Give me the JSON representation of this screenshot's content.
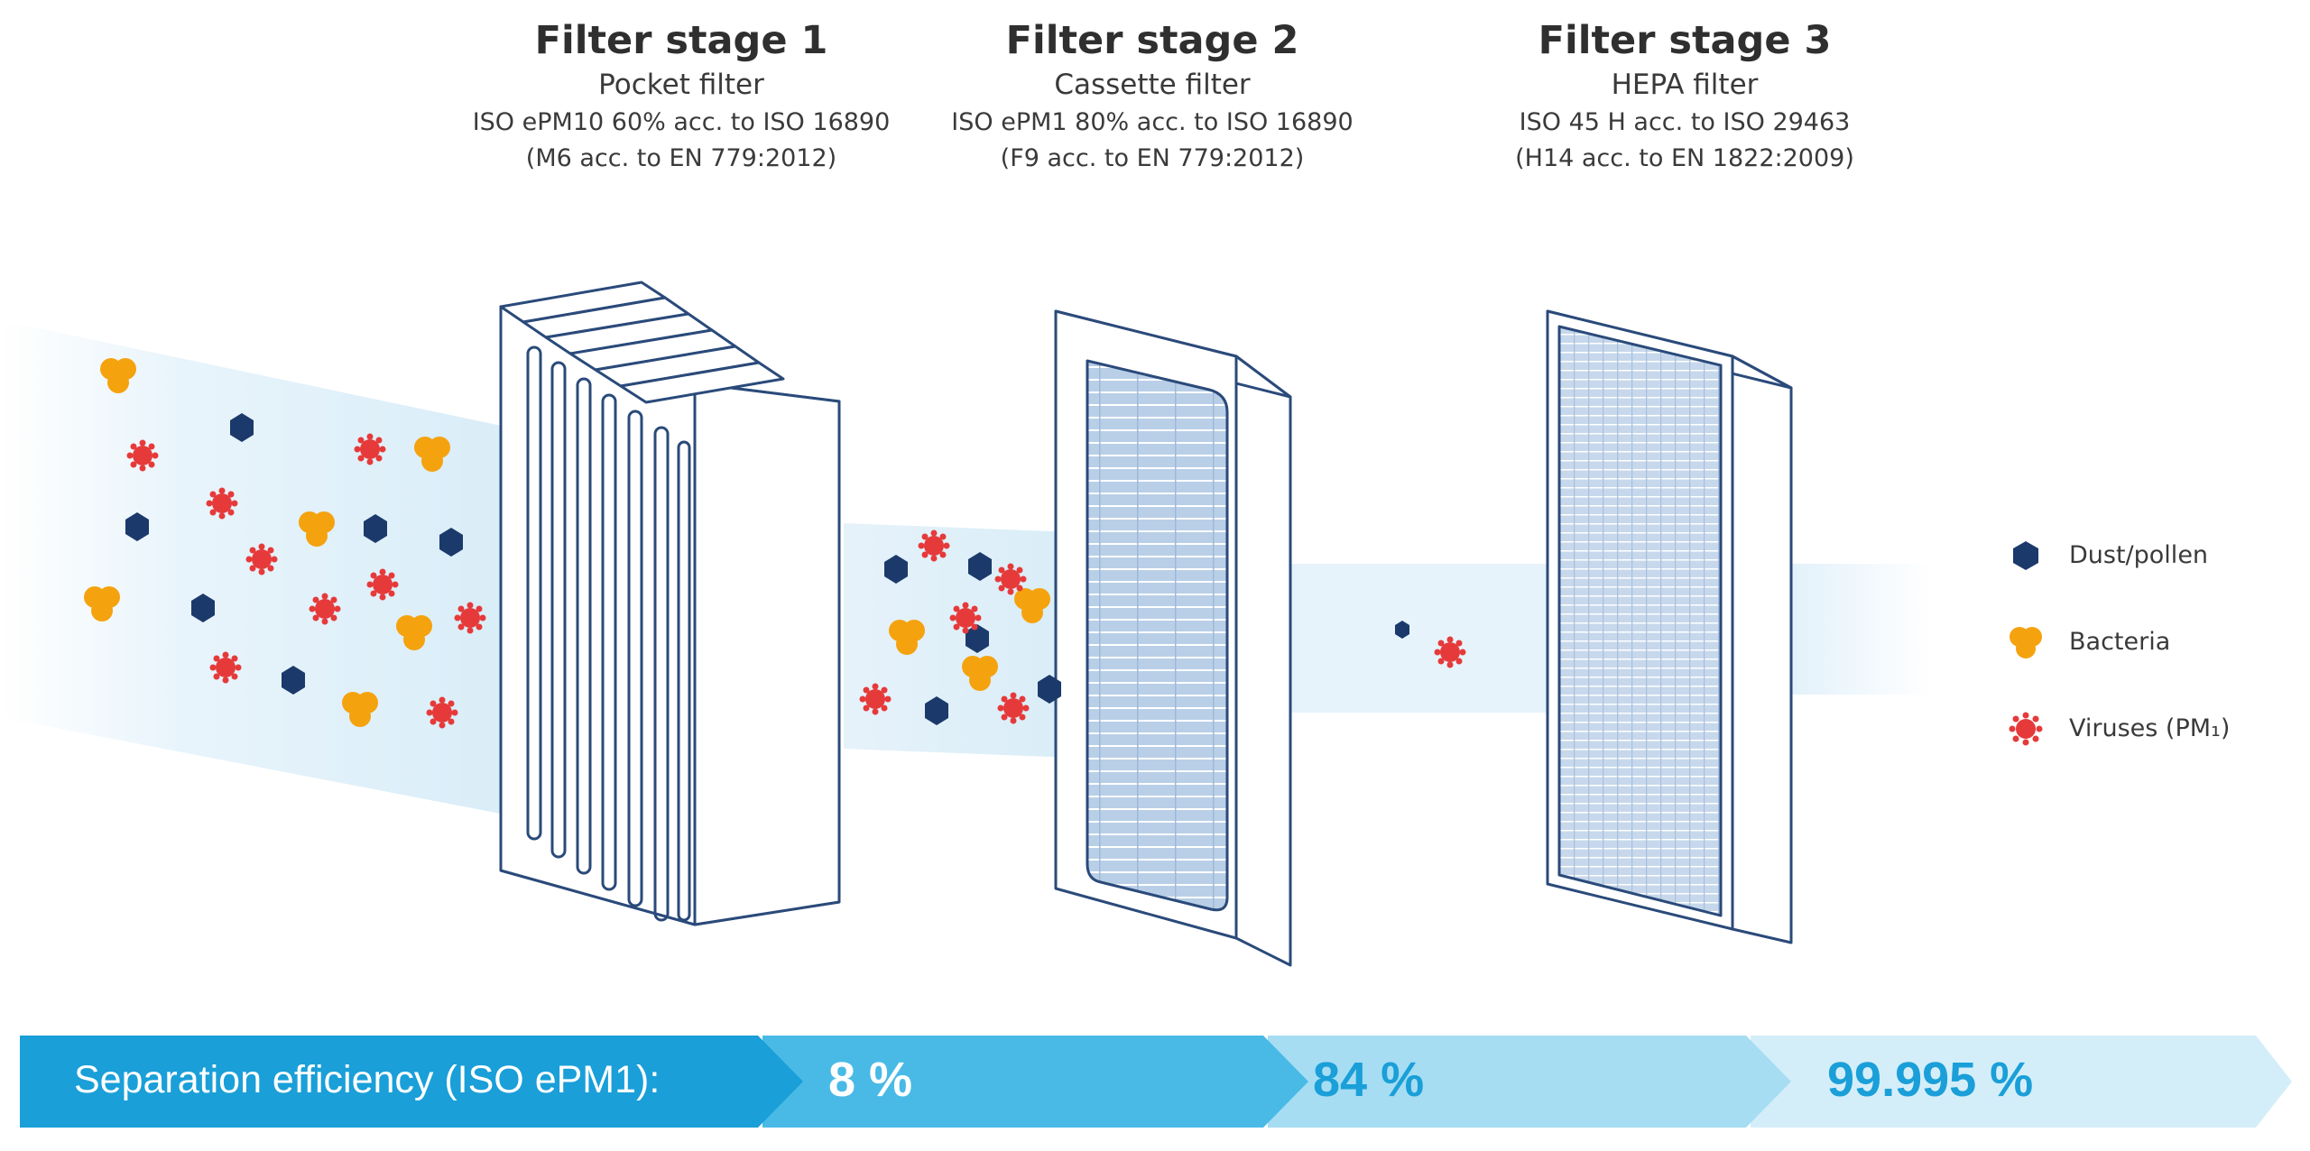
{
  "stages": [
    {
      "title": "Filter stage 1",
      "type": "Pocket filter",
      "rating": "ISO ePM10 60% acc. to ISO 16890",
      "equivalent": "(M6 acc. to EN 779:2012)"
    },
    {
      "title": "Filter stage 2",
      "type": "Cassette filter",
      "rating": "ISO ePM1 80% acc. to ISO 16890",
      "equivalent": "(F9 acc. to EN 779:2012)"
    },
    {
      "title": "Filter stage 3",
      "type": "HEPA filter",
      "rating": "ISO 45 H acc. to ISO 29463",
      "equivalent": "(H14 acc. to EN 1822:2009)"
    }
  ],
  "legend": [
    {
      "label": "Dust/pollen",
      "icon": "hexagon",
      "color": "#1b3a6b"
    },
    {
      "label": "Bacteria",
      "icon": "cluster",
      "color": "#f5a20f"
    },
    {
      "label": "Viruses (PM₁)",
      "icon": "spiky-circle",
      "color": "#e63a3a"
    }
  ],
  "efficiency": {
    "label": "Separation efficiency (ISO ePM1):",
    "values": [
      "8 %",
      "84 %",
      "99.995 %"
    ]
  },
  "colors": {
    "navy": "#1b3a6b",
    "orange": "#f5a20f",
    "red": "#e63a3a",
    "bar_dark": "#1a9fd8",
    "bar_mid": "#49b9e4",
    "bar_light": "#a3dcf3",
    "bar_lighter": "#d6f0fb",
    "filter_mesh": "#b7cde6"
  }
}
